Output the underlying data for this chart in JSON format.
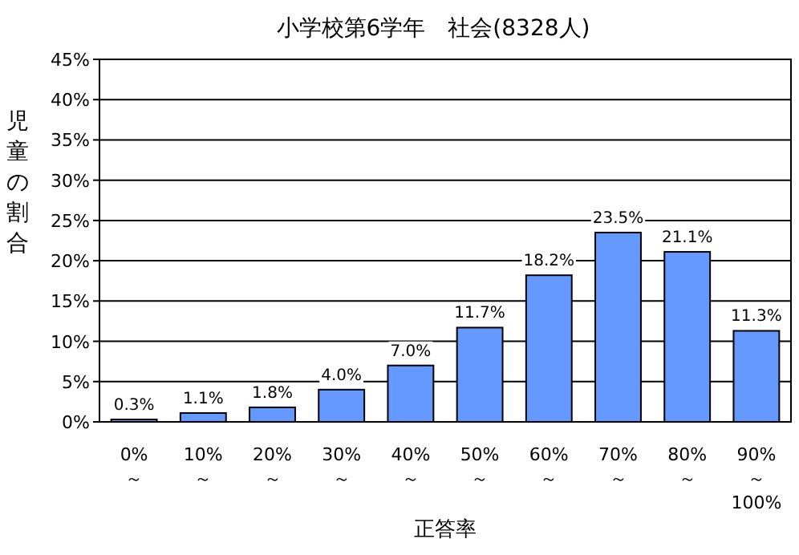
{
  "chart_data": {
    "type": "bar",
    "title": "小学校第6学年　社会(8328人)",
    "xlabel": "正答率",
    "ylabel": "児童の割合",
    "categories": [
      "0%\n～",
      "10%\n～",
      "20%\n～",
      "30%\n～",
      "40%\n～",
      "50%\n～",
      "60%\n～",
      "70%\n～",
      "80%\n～",
      "90%\n～\n100%"
    ],
    "values": [
      0.3,
      1.1,
      1.8,
      4.0,
      7.0,
      11.7,
      18.2,
      23.5,
      21.1,
      11.3
    ],
    "value_labels": [
      "0.3%",
      "1.1%",
      "1.8%",
      "4.0%",
      "7.0%",
      "11.7%",
      "18.2%",
      "23.5%",
      "21.1%",
      "11.3%"
    ],
    "color": "#6699ff",
    "ylim": [
      0,
      45
    ],
    "yticks": [
      {
        "value": 0,
        "label": "0%"
      },
      {
        "value": 5,
        "label": "5%"
      },
      {
        "value": 10,
        "label": "10%"
      },
      {
        "value": 15,
        "label": "15%"
      },
      {
        "value": 20,
        "label": "20%"
      },
      {
        "value": 25,
        "label": "25%"
      },
      {
        "value": 30,
        "label": "30%"
      },
      {
        "value": 35,
        "label": "35%"
      },
      {
        "value": 40,
        "label": "40%"
      },
      {
        "value": 45,
        "label": "45%"
      }
    ],
    "grid": "y"
  }
}
